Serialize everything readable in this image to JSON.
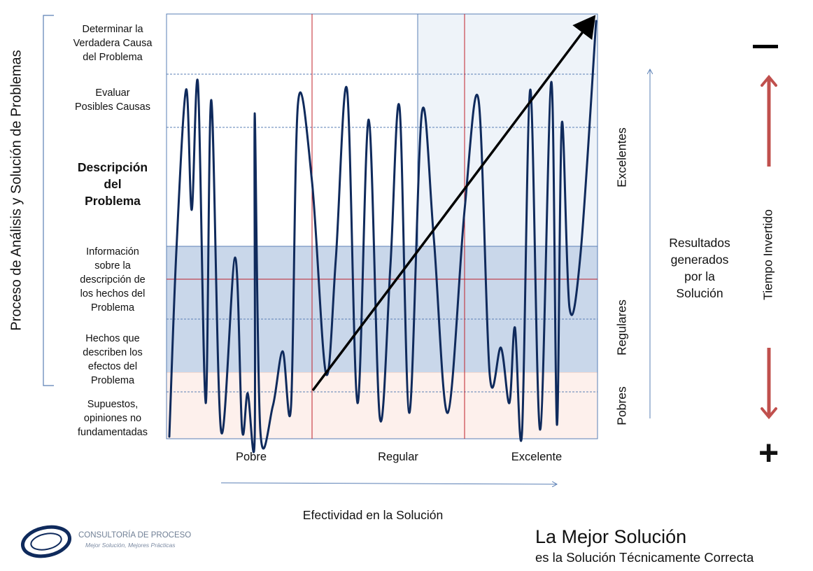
{
  "vertical_title": "Proceso de Análisis y Solución de Problemas",
  "levels": [
    {
      "key": "causa",
      "label": "Determinar la\nVerdadera Causa\ndel Problema",
      "bold": false
    },
    {
      "key": "evaluar",
      "label": "Evaluar\nPosibles Causas",
      "bold": false
    },
    {
      "key": "descripcion",
      "label": "Descripción\ndel\nProblema",
      "bold": true
    },
    {
      "key": "informacion",
      "label": "Información\nsobre la\ndescripción de\nlos hechos del\nProblema",
      "bold": false
    },
    {
      "key": "hechos",
      "label": "Hechos que\ndescriben los\nefectos del\nProblema",
      "bold": false
    },
    {
      "key": "supuestos",
      "label": "Supuestos,\nopiniones no\nfundamentadas",
      "bold": false
    }
  ],
  "x_categories": [
    "Pobre",
    "Regular",
    "Excelente"
  ],
  "x_title": "Efectividad en la Solución",
  "result_bands": [
    "Excelentes",
    "Regulares",
    "Pobres"
  ],
  "results_label": "Resultados\ngenerados\npor la\nSolución",
  "time_label": "Tiempo Invertido",
  "time_more": "−",
  "time_less": "+",
  "footer": {
    "title": "La Mejor Solución",
    "subtitle": "es la Solución Técnicamente Correcta"
  },
  "logo": {
    "name": "CONSULTORÍA DE PROCESO",
    "tagline": "Mejor Solución, Mejores Prácticas"
  },
  "colors": {
    "wave": "#0f2a5c",
    "arrow": "#000000",
    "band_poor": "#fdf0ec",
    "band_regular": "#c9d7ea",
    "band_excellent": "#eef3f9",
    "grid_red": "#c0202a",
    "grid_blue": "#5a7fb5",
    "time_arrow": "#c0504d"
  }
}
